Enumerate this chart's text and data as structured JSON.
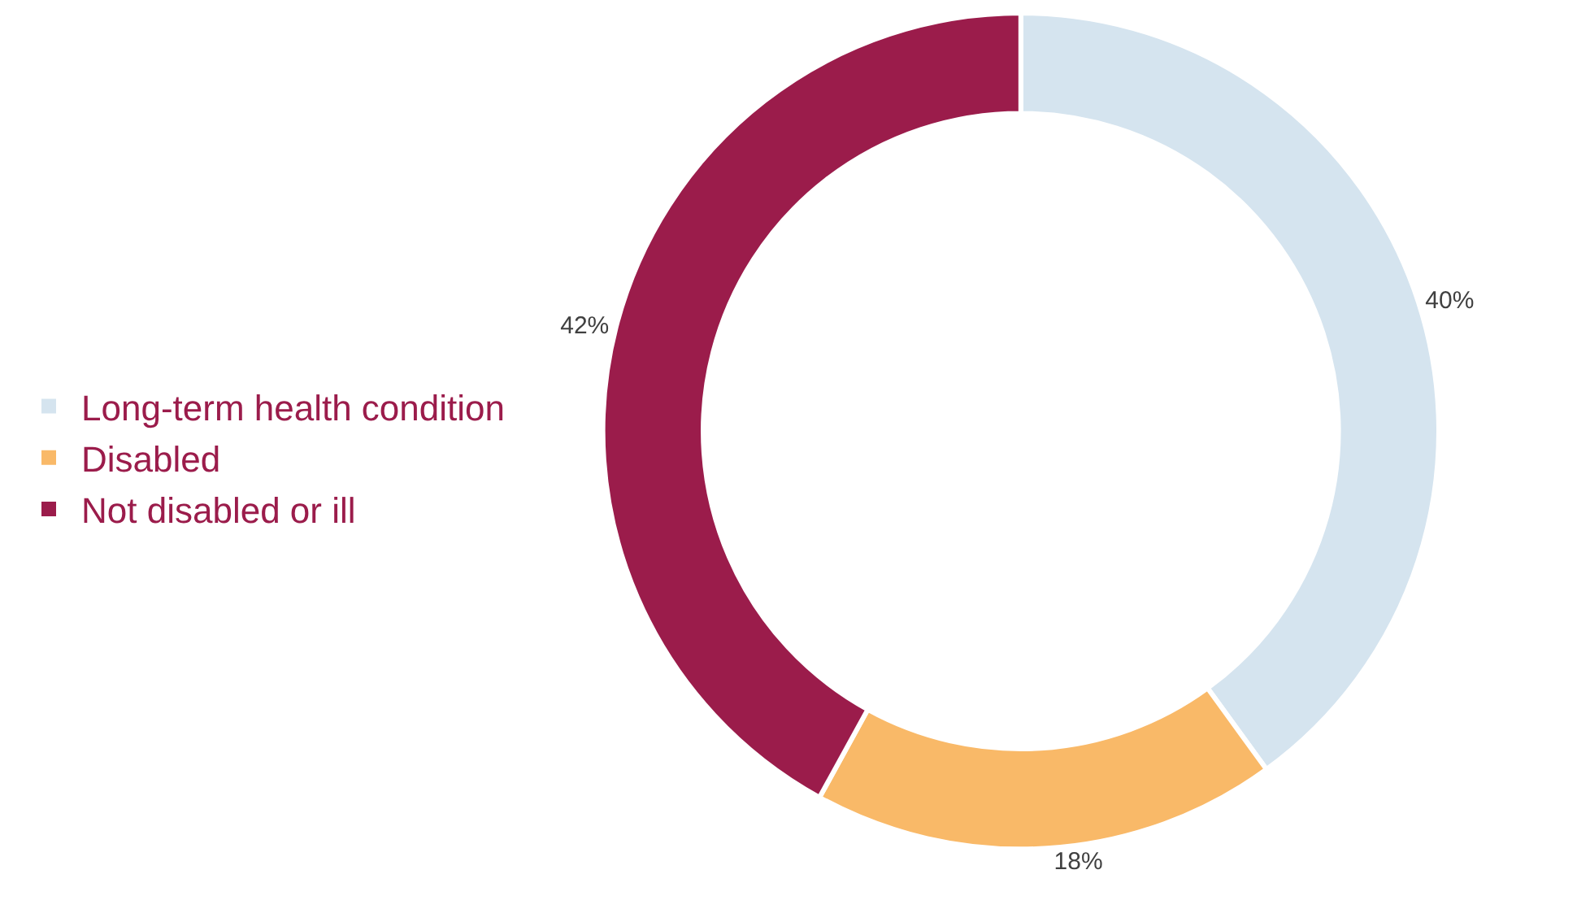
{
  "chart_data": {
    "type": "donut",
    "categories": [
      "Long-term health condition",
      "Disabled",
      "Not disabled or ill"
    ],
    "values": [
      40,
      18,
      42
    ],
    "colors": [
      "#d5e4ef",
      "#f9b968",
      "#9b1c4b"
    ],
    "value_labels": [
      "40%",
      "18%",
      "42%"
    ],
    "legend": "left"
  }
}
